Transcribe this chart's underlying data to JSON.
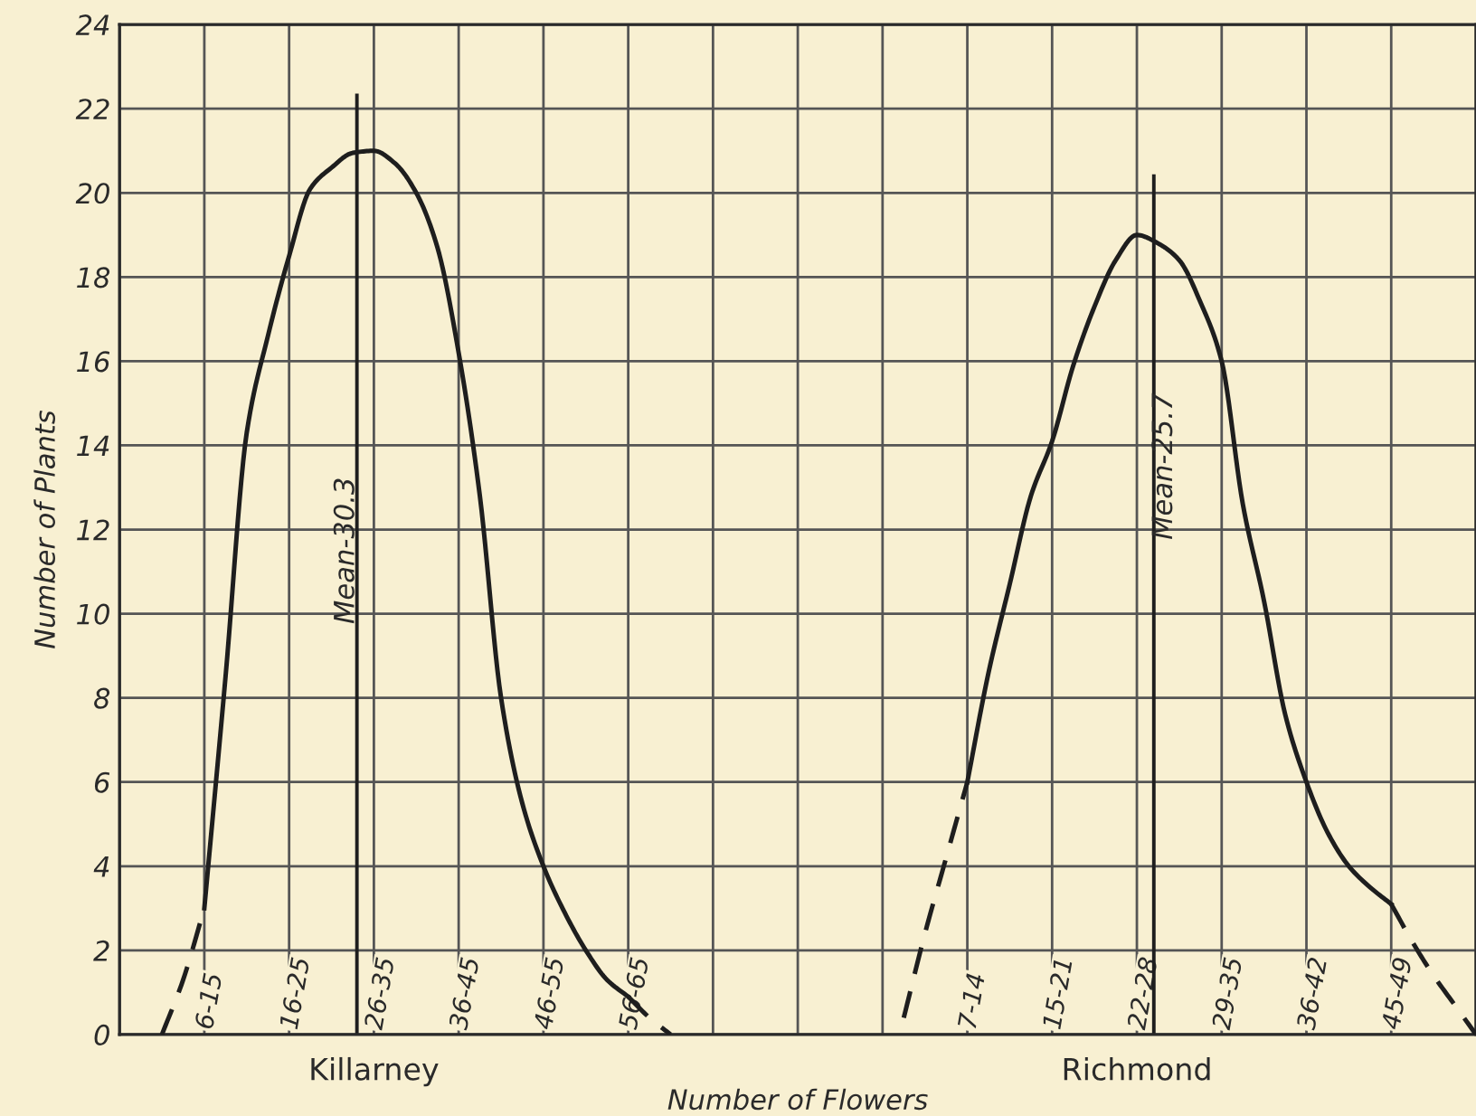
{
  "chart_data": {
    "type": "line",
    "xlabel": "Number of Flowers",
    "ylabel": "Number of Plants",
    "categories": [
      null,
      null,
      null,
      null,
      "6-15",
      null,
      null,
      null,
      "16-25",
      null,
      null,
      null,
      "26-35",
      null,
      null,
      null,
      "36-45",
      null,
      null,
      null,
      "46-55",
      null,
      null,
      null,
      "56-65",
      null,
      null,
      null,
      null,
      null,
      null,
      null,
      null,
      null,
      null,
      null,
      null,
      null,
      null,
      null,
      "7-14",
      null,
      null,
      null,
      "15-21",
      null,
      null,
      null,
      "22-28",
      null,
      null,
      null,
      "29-35",
      null,
      null,
      null,
      "36-42",
      null,
      null,
      null,
      "45-49",
      null,
      null,
      null,
      null
    ],
    "ylim": [
      0,
      24
    ],
    "yticks": [
      0,
      2,
      4,
      6,
      8,
      10,
      12,
      14,
      16,
      18,
      20,
      22,
      24
    ],
    "grid": true,
    "legend": false,
    "marker": "none",
    "series": [
      {
        "line_style": "dashed",
        "color": "#1e1e1e",
        "values": [
          null,
          null,
          0,
          1.3,
          3,
          null,
          null,
          null,
          null,
          null,
          null,
          null,
          null,
          null,
          null,
          null,
          null,
          null,
          null,
          null,
          null,
          null,
          null,
          null,
          null,
          null,
          null,
          null,
          null,
          null,
          null,
          null,
          null,
          null,
          null,
          null,
          null,
          null,
          null,
          null,
          null,
          null,
          null,
          null,
          null,
          null,
          null,
          null,
          null,
          null,
          null,
          null,
          null,
          null,
          null,
          null,
          null,
          null,
          null,
          null,
          null,
          null,
          null,
          null,
          null
        ]
      },
      {
        "line_style": "solid",
        "color": "#1e1e1e",
        "values": [
          null,
          null,
          null,
          null,
          3,
          8.5,
          14.3,
          16.6,
          18.5,
          20.1,
          20.6,
          20.95,
          21,
          20.7,
          20,
          18.7,
          16.2,
          12.8,
          8,
          5.5,
          4,
          2.9,
          2,
          1.3,
          0.9,
          null,
          null,
          null,
          null,
          null,
          null,
          null,
          null,
          null,
          null,
          null,
          null,
          null,
          null,
          null,
          null,
          null,
          null,
          null,
          null,
          null,
          null,
          null,
          null,
          null,
          null,
          null,
          null,
          null,
          null,
          null,
          null,
          null,
          null,
          null,
          null,
          null,
          null,
          null,
          null
        ]
      },
      {
        "line_style": "dashed",
        "color": "#1e1e1e",
        "values": [
          null,
          null,
          null,
          null,
          null,
          null,
          null,
          null,
          null,
          null,
          null,
          null,
          null,
          null,
          null,
          null,
          null,
          null,
          null,
          null,
          null,
          null,
          null,
          null,
          0.9,
          0.4,
          0,
          null,
          null,
          null,
          null,
          null,
          null,
          null,
          null,
          null,
          null,
          null,
          null,
          null,
          null,
          null,
          null,
          null,
          null,
          null,
          null,
          null,
          null,
          null,
          null,
          null,
          null,
          null,
          null,
          null,
          null,
          null,
          null,
          null,
          null,
          null,
          null,
          null,
          null
        ]
      },
      {
        "line_style": "dashed",
        "color": "#1e1e1e",
        "values": [
          null,
          null,
          null,
          null,
          null,
          null,
          null,
          null,
          null,
          null,
          null,
          null,
          null,
          null,
          null,
          null,
          null,
          null,
          null,
          null,
          null,
          null,
          null,
          null,
          null,
          null,
          null,
          null,
          null,
          null,
          null,
          null,
          null,
          null,
          null,
          null,
          null,
          0.4,
          2.4,
          4.2,
          6,
          null,
          null,
          null,
          null,
          null,
          null,
          null,
          null,
          null,
          null,
          null,
          null,
          null,
          null,
          null,
          null,
          null,
          null,
          null,
          null,
          null,
          null,
          null,
          null
        ]
      },
      {
        "line_style": "solid",
        "color": "#1e1e1e",
        "values": [
          null,
          null,
          null,
          null,
          null,
          null,
          null,
          null,
          null,
          null,
          null,
          null,
          null,
          null,
          null,
          null,
          null,
          null,
          null,
          null,
          null,
          null,
          null,
          null,
          null,
          null,
          null,
          null,
          null,
          null,
          null,
          null,
          null,
          null,
          null,
          null,
          null,
          null,
          null,
          null,
          6,
          8.6,
          10.7,
          12.8,
          14.1,
          15.9,
          17.3,
          18.4,
          19,
          18.8,
          18.4,
          17.4,
          16,
          12.6,
          10.3,
          7.6,
          6,
          4.8,
          4,
          3.5,
          3.1,
          null,
          null,
          null,
          null
        ]
      },
      {
        "line_style": "dashed",
        "color": "#1e1e1e",
        "values": [
          null,
          null,
          null,
          null,
          null,
          null,
          null,
          null,
          null,
          null,
          null,
          null,
          null,
          null,
          null,
          null,
          null,
          null,
          null,
          null,
          null,
          null,
          null,
          null,
          null,
          null,
          null,
          null,
          null,
          null,
          null,
          null,
          null,
          null,
          null,
          null,
          null,
          null,
          null,
          null,
          null,
          null,
          null,
          null,
          null,
          null,
          null,
          null,
          null,
          null,
          null,
          null,
          null,
          null,
          null,
          null,
          null,
          null,
          null,
          null,
          3.1,
          2.2,
          1.4,
          0.7,
          0
        ]
      }
    ],
    "annotations": [
      "Killarney",
      "Mean-30.3",
      "Richmond",
      "Mean-25.7"
    ]
  }
}
